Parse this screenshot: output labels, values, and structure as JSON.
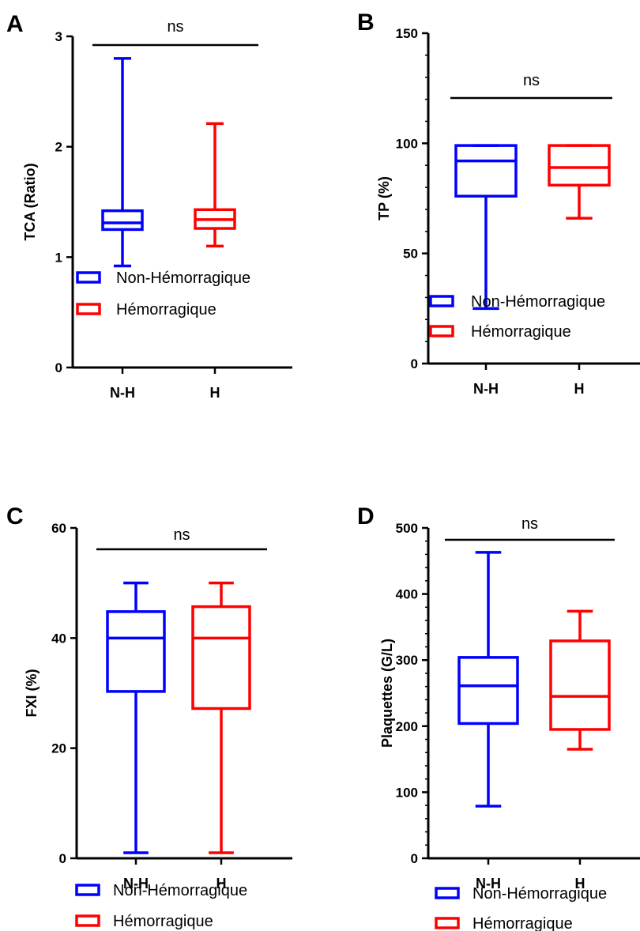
{
  "colors": {
    "non_hemorragique": "#0000ff",
    "hemorragique": "#ff0000",
    "axis": "#000000"
  },
  "chart_data": [
    {
      "type": "box",
      "panel": "A",
      "ylabel": "TCA (Ratio)",
      "ylim": [
        0,
        3
      ],
      "yticks": [
        0,
        1,
        2,
        3
      ],
      "minor_ticks": false,
      "categories": [
        "N-H",
        "H"
      ],
      "significance": "ns",
      "series": [
        {
          "name": "Non-Hémorragique",
          "color": "#0000ff",
          "min": 0.92,
          "q1": 1.25,
          "median": 1.31,
          "q3": 1.42,
          "max": 2.8
        },
        {
          "name": "Hémorragique",
          "color": "#ff0000",
          "min": 1.1,
          "q1": 1.26,
          "median": 1.34,
          "q3": 1.43,
          "max": 2.21
        }
      ],
      "legend": [
        "Non-Hémorragique",
        "Hémorragique"
      ]
    },
    {
      "type": "box",
      "panel": "B",
      "ylabel": "TP (%)",
      "ylim": [
        0,
        150
      ],
      "yticks": [
        0,
        50,
        100,
        150
      ],
      "minor_ticks": true,
      "categories": [
        "N-H",
        "H"
      ],
      "significance": "ns",
      "series": [
        {
          "name": "Non-Hémorragique",
          "color": "#0000ff",
          "min": 25,
          "q1": 76,
          "median": 92,
          "q3": 99,
          "max": 99
        },
        {
          "name": "Hémorragique",
          "color": "#ff0000",
          "min": 66,
          "q1": 81,
          "median": 89,
          "q3": 99,
          "max": 99
        }
      ],
      "legend": [
        "Non-Hémorragique",
        "Hémorragique"
      ]
    },
    {
      "type": "box",
      "panel": "C",
      "ylabel": "FXI (%)",
      "ylim": [
        0,
        60
      ],
      "yticks": [
        0,
        20,
        40,
        60
      ],
      "minor_ticks": false,
      "categories": [
        "N-H",
        "H"
      ],
      "significance": "ns",
      "series": [
        {
          "name": "Non-Hémorragique",
          "color": "#0000ff",
          "min": 1,
          "q1": 30.3,
          "median": 40,
          "q3": 44.8,
          "max": 50
        },
        {
          "name": "Hémorragique",
          "color": "#ff0000",
          "min": 1,
          "q1": 27.2,
          "median": 40,
          "q3": 45.7,
          "max": 50
        }
      ],
      "legend": [
        "Non-Hémorragique",
        "Hémorragique"
      ]
    },
    {
      "type": "box",
      "panel": "D",
      "ylabel": "Plaquettes (G/L)",
      "ylim": [
        0,
        500
      ],
      "yticks": [
        0,
        100,
        200,
        300,
        400,
        500
      ],
      "minor_ticks": true,
      "categories": [
        "N-H",
        "H"
      ],
      "significance": "ns",
      "series": [
        {
          "name": "Non-Hémorragique",
          "color": "#0000ff",
          "min": 79,
          "q1": 204,
          "median": 261,
          "q3": 304,
          "max": 463
        },
        {
          "name": "Hémorragique",
          "color": "#ff0000",
          "min": 165,
          "q1": 195,
          "median": 245,
          "q3": 329,
          "max": 374
        }
      ],
      "legend": [
        "Non-Hémorragique",
        "Hémorragique"
      ]
    }
  ]
}
